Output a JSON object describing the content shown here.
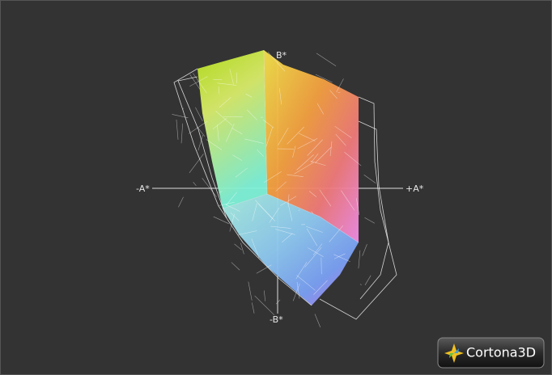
{
  "axes": {
    "plus_b": "B*",
    "minus_a": "-A*",
    "plus_a": "+A*",
    "minus_b": "-B*"
  },
  "logo": {
    "text": "Cortona3D"
  }
}
